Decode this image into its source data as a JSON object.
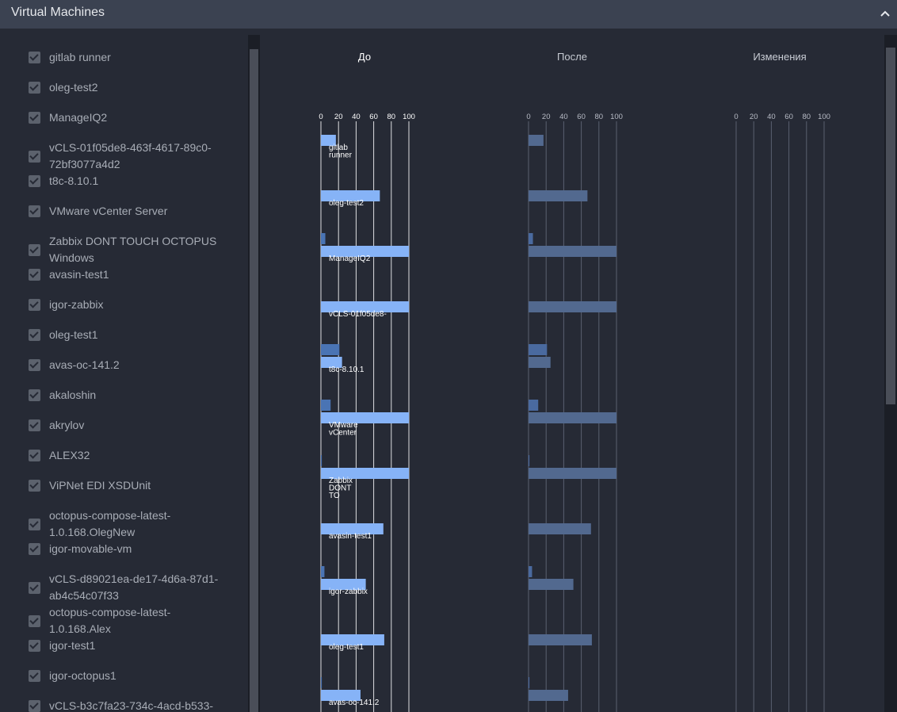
{
  "header": {
    "title": "Virtual Machines"
  },
  "vm_list": [
    "gitlab runner",
    "oleg-test2",
    "ManageIQ2",
    "vCLS-01f05de8-463f-4617-89c0-72bf3077a4d2",
    "t8c-8.10.1",
    "VMware vCenter Server",
    "Zabbix DONT TOUCH OCTOPUS Windows",
    "avasin-test1",
    "igor-zabbix",
    "oleg-test1",
    "avas-oc-141.2",
    "akaloshin",
    "akrylov",
    "ALEX32",
    "ViPNet EDI XSDUnit",
    "octopus-compose-latest-1.0.168.OlegNew",
    "igor-movable-vm",
    "vCLS-d89021ea-de17-4d6a-87d1-ab4c54c07f33",
    "octopus-compose-latest-1.0.168.Alex",
    "igor-test1",
    "igor-octopus1",
    "vCLS-b3c7fa23-734c-4acd-b533-"
  ],
  "chart_data": [
    {
      "type": "bar",
      "title": "До",
      "categories": [
        [
          "gitlab",
          "runner"
        ],
        [
          "oleg-test2"
        ],
        [
          "ManageIQ2"
        ],
        [
          "vCLS-01f05de8-"
        ],
        [
          "t8c-8.10.1"
        ],
        [
          "VMware",
          "vCenter"
        ],
        [
          "Zabbix",
          "DONT",
          "TO"
        ],
        [
          "avasin-test1"
        ],
        [
          "igor-zabbix"
        ],
        [
          "oleg-test1"
        ],
        [
          "avas-oc-141.2"
        ]
      ],
      "series": [
        {
          "color": "#4a74b4",
          "values": [
            0,
            0,
            5,
            0,
            21,
            11,
            1,
            0,
            4,
            0,
            1
          ]
        },
        {
          "color": "#86b3f7",
          "values": [
            17,
            67,
            100,
            100,
            24,
            100,
            100,
            71,
            51,
            72,
            45
          ]
        }
      ],
      "xlim": [
        0,
        100
      ],
      "xticks": [
        0,
        20,
        40,
        60,
        80,
        100
      ],
      "grid_color": "#ffffff"
    },
    {
      "type": "bar",
      "title": "После",
      "series": [
        {
          "color": "#4a6a9f",
          "values": [
            0,
            0,
            5,
            0,
            21,
            11,
            1,
            0,
            4,
            0,
            1
          ]
        },
        {
          "color": "#52698f",
          "values": [
            17,
            67,
            100,
            100,
            25,
            100,
            100,
            71,
            51,
            72,
            45
          ]
        }
      ],
      "xlim": [
        0,
        100
      ],
      "xticks": [
        0,
        20,
        40,
        60,
        80,
        100
      ],
      "grid_color": "#5a6070"
    },
    {
      "type": "bar",
      "title": "Изменения",
      "xlim": [
        0,
        100
      ],
      "xticks": [
        0,
        20,
        40,
        60,
        80,
        100
      ],
      "grid_color": "#5a6070"
    }
  ]
}
